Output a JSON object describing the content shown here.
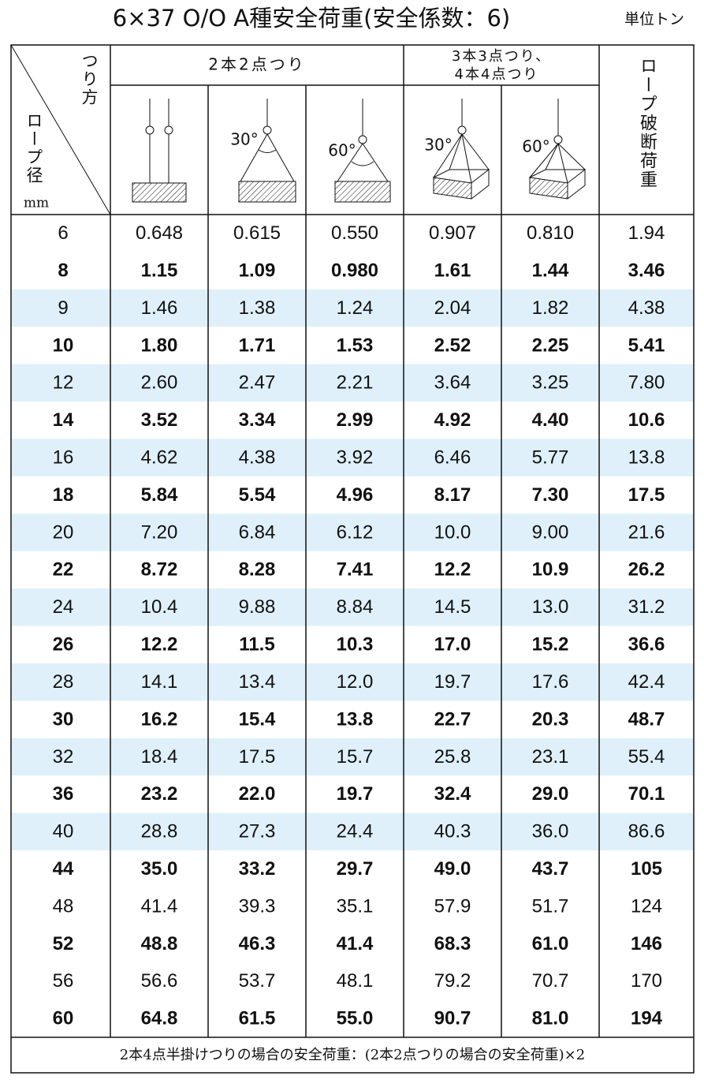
{
  "title": "6×37 O/O A種安全荷重(安全係数：6)",
  "unit": "単位トン",
  "header": {
    "method": "つり方",
    "diameter": "ロープ径",
    "diameter_unit": "mm",
    "group1": "2本2点つり",
    "group2_line1": "3本3点つり、",
    "group2_line2": "4本4点つり",
    "breaking": "ロープ破断荷重",
    "angles": [
      "30°",
      "60°",
      "30°",
      "60°"
    ]
  },
  "table": {
    "rows": [
      {
        "cells": [
          "6",
          "0.648",
          "0.615",
          "0.550",
          "0.907",
          "0.810",
          "1.94"
        ],
        "shaded": false,
        "bold": false
      },
      {
        "cells": [
          "8",
          "1.15",
          "1.09",
          "0.980",
          "1.61",
          "1.44",
          "3.46"
        ],
        "shaded": false,
        "bold": true
      },
      {
        "cells": [
          "9",
          "1.46",
          "1.38",
          "1.24",
          "2.04",
          "1.82",
          "4.38"
        ],
        "shaded": true,
        "bold": false
      },
      {
        "cells": [
          "10",
          "1.80",
          "1.71",
          "1.53",
          "2.52",
          "2.25",
          "5.41"
        ],
        "shaded": false,
        "bold": true
      },
      {
        "cells": [
          "12",
          "2.60",
          "2.47",
          "2.21",
          "3.64",
          "3.25",
          "7.80"
        ],
        "shaded": true,
        "bold": false
      },
      {
        "cells": [
          "14",
          "3.52",
          "3.34",
          "2.99",
          "4.92",
          "4.40",
          "10.6"
        ],
        "shaded": false,
        "bold": true
      },
      {
        "cells": [
          "16",
          "4.62",
          "4.38",
          "3.92",
          "6.46",
          "5.77",
          "13.8"
        ],
        "shaded": true,
        "bold": false
      },
      {
        "cells": [
          "18",
          "5.84",
          "5.54",
          "4.96",
          "8.17",
          "7.30",
          "17.5"
        ],
        "shaded": false,
        "bold": true
      },
      {
        "cells": [
          "20",
          "7.20",
          "6.84",
          "6.12",
          "10.0",
          "9.00",
          "21.6"
        ],
        "shaded": true,
        "bold": false
      },
      {
        "cells": [
          "22",
          "8.72",
          "8.28",
          "7.41",
          "12.2",
          "10.9",
          "26.2"
        ],
        "shaded": false,
        "bold": true
      },
      {
        "cells": [
          "24",
          "10.4",
          "9.88",
          "8.84",
          "14.5",
          "13.0",
          "31.2"
        ],
        "shaded": true,
        "bold": false
      },
      {
        "cells": [
          "26",
          "12.2",
          "11.5",
          "10.3",
          "17.0",
          "15.2",
          "36.6"
        ],
        "shaded": false,
        "bold": true
      },
      {
        "cells": [
          "28",
          "14.1",
          "13.4",
          "12.0",
          "19.7",
          "17.6",
          "42.4"
        ],
        "shaded": true,
        "bold": false
      },
      {
        "cells": [
          "30",
          "16.2",
          "15.4",
          "13.8",
          "22.7",
          "20.3",
          "48.7"
        ],
        "shaded": false,
        "bold": true
      },
      {
        "cells": [
          "32",
          "18.4",
          "17.5",
          "15.7",
          "25.8",
          "23.1",
          "55.4"
        ],
        "shaded": true,
        "bold": false
      },
      {
        "cells": [
          "36",
          "23.2",
          "22.0",
          "19.7",
          "32.4",
          "29.0",
          "70.1"
        ],
        "shaded": false,
        "bold": true
      },
      {
        "cells": [
          "40",
          "28.8",
          "27.3",
          "24.4",
          "40.3",
          "36.0",
          "86.6"
        ],
        "shaded": true,
        "bold": false
      },
      {
        "cells": [
          "44",
          "35.0",
          "33.2",
          "29.7",
          "49.0",
          "43.7",
          "105"
        ],
        "shaded": false,
        "bold": true
      },
      {
        "cells": [
          "48",
          "41.4",
          "39.3",
          "35.1",
          "57.9",
          "51.7",
          "124"
        ],
        "shaded": false,
        "bold": false
      },
      {
        "cells": [
          "52",
          "48.8",
          "46.3",
          "41.4",
          "68.3",
          "61.0",
          "146"
        ],
        "shaded": false,
        "bold": true
      },
      {
        "cells": [
          "56",
          "56.6",
          "53.7",
          "48.1",
          "79.2",
          "70.7",
          "170"
        ],
        "shaded": false,
        "bold": false
      },
      {
        "cells": [
          "60",
          "64.8",
          "61.5",
          "55.0",
          "90.7",
          "81.0",
          "194"
        ],
        "shaded": false,
        "bold": true
      }
    ]
  },
  "footer": "2本4点半掛けつりの場合の安全荷重：(2本2点つりの場合の安全荷重)×2"
}
